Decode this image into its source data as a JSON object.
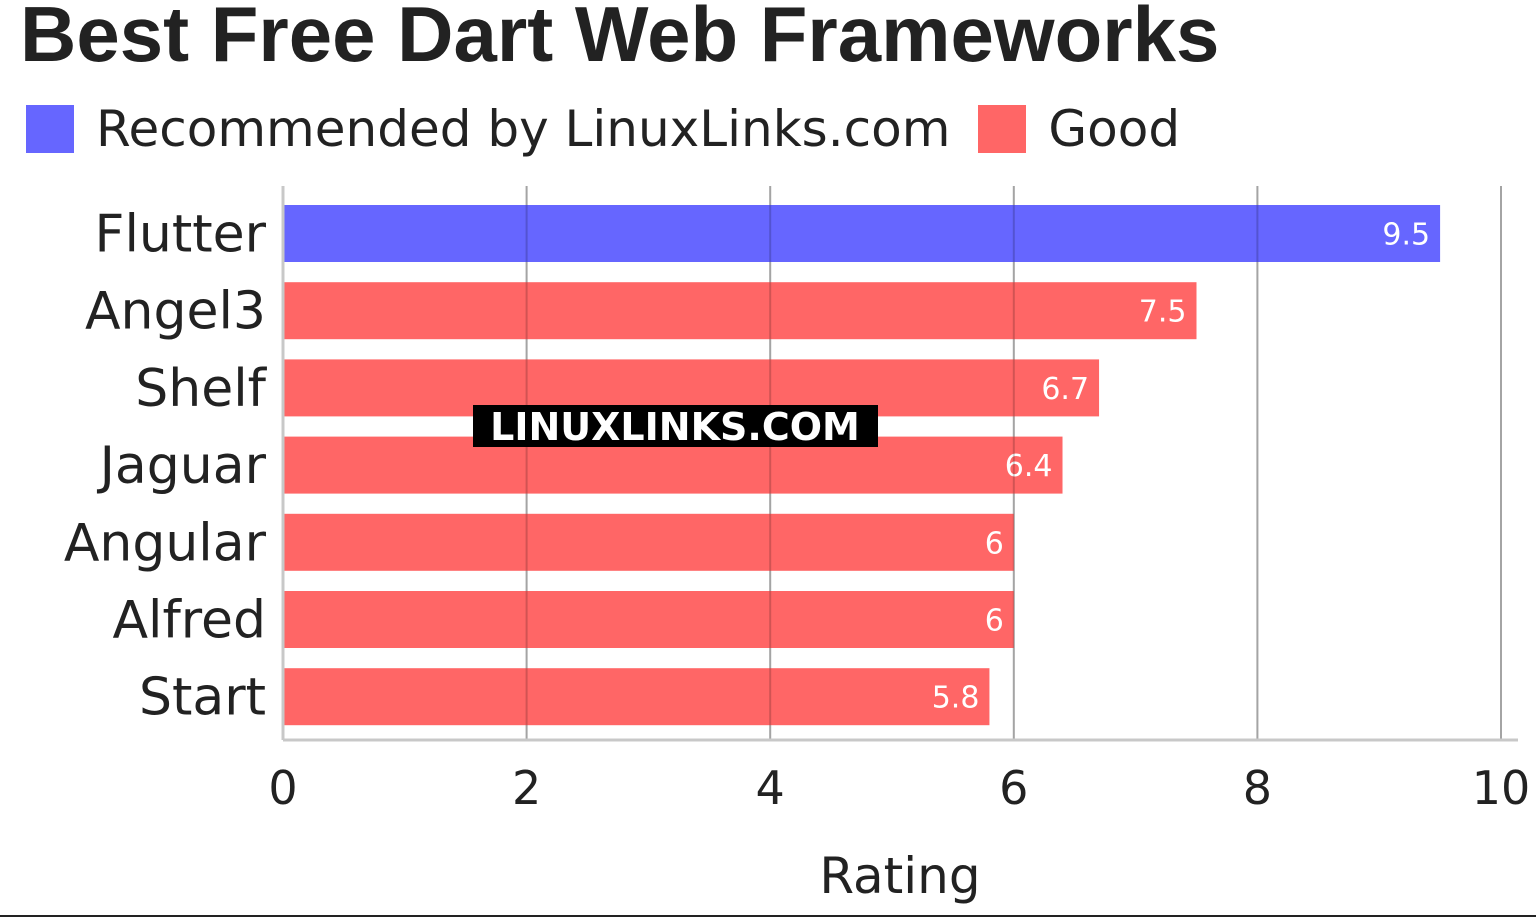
{
  "chart_data": {
    "type": "bar",
    "orientation": "horizontal",
    "title": "Best Free Dart Web Frameworks",
    "xlabel": "Rating",
    "xlim": [
      0,
      10
    ],
    "x_ticks": [
      "0",
      "2",
      "4",
      "6",
      "8",
      "10"
    ],
    "grid": true,
    "legend_position": "top-left",
    "legend": [
      {
        "label": "Recommended by LinuxLinks.com",
        "color": "#6666ff"
      },
      {
        "label": "Good",
        "color": "#ff6666"
      }
    ],
    "categories": [
      "Flutter",
      "Angel3",
      "Shelf",
      "Jaguar",
      "Angular",
      "Alfred",
      "Start"
    ],
    "values": [
      9.5,
      7.5,
      6.7,
      6.4,
      6,
      6,
      5.8
    ],
    "value_labels": [
      "9.5",
      "7.5",
      "6.7",
      "6.4",
      "6",
      "6",
      "5.8"
    ],
    "bar_groups": [
      "Recommended by LinuxLinks.com",
      "Good",
      "Good",
      "Good",
      "Good",
      "Good",
      "Good"
    ]
  },
  "watermark": "LINUXLINKS.COM",
  "colors": {
    "recommended": "#6666ff",
    "good": "#ff6666",
    "grid": "#c8c8c8",
    "text": "#222222"
  }
}
